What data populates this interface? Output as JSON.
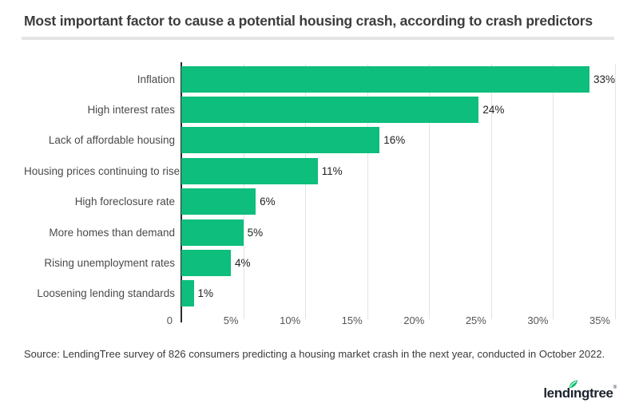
{
  "header": {
    "title": "Most important factor to cause a potential housing crash, according to crash predictors"
  },
  "chart_data": {
    "type": "bar",
    "orientation": "horizontal",
    "title": "Most important factor to cause a potential housing crash, according to crash predictors",
    "categories": [
      "Inflation",
      "High interest rates",
      "Lack of affordable housing",
      "Housing prices continuing to rise",
      "High foreclosure rate",
      "More homes than demand",
      "Rising unemployment rates",
      "Loosening lending standards"
    ],
    "values": [
      33,
      24,
      16,
      11,
      6,
      5,
      4,
      1
    ],
    "value_labels": [
      "33%",
      "24%",
      "16%",
      "11%",
      "6%",
      "5%",
      "4%",
      "1%"
    ],
    "xlim": [
      0,
      35
    ],
    "x_ticks": [
      {
        "v": 0,
        "label": "0"
      },
      {
        "v": 5,
        "label": "5%"
      },
      {
        "v": 10,
        "label": "10%"
      },
      {
        "v": 15,
        "label": "15%"
      },
      {
        "v": 20,
        "label": "20%"
      },
      {
        "v": 25,
        "label": "25%"
      },
      {
        "v": 30,
        "label": "30%"
      },
      {
        "v": 35,
        "label": "35%"
      }
    ],
    "grid": true,
    "legend": false,
    "bar_color": "#0dbe7c",
    "axis_color": "#2b2b2b",
    "gridline_color": "#e3e3e3"
  },
  "footer": {
    "source": "Source: LendingTree survey of 826 consumers predicting a housing market crash in the next year, conducted in October 2022."
  },
  "logo": {
    "text": "lendingtree",
    "mark": "®",
    "wordmark_color": "#1d232e",
    "leaf_color": "#0abf6e"
  }
}
